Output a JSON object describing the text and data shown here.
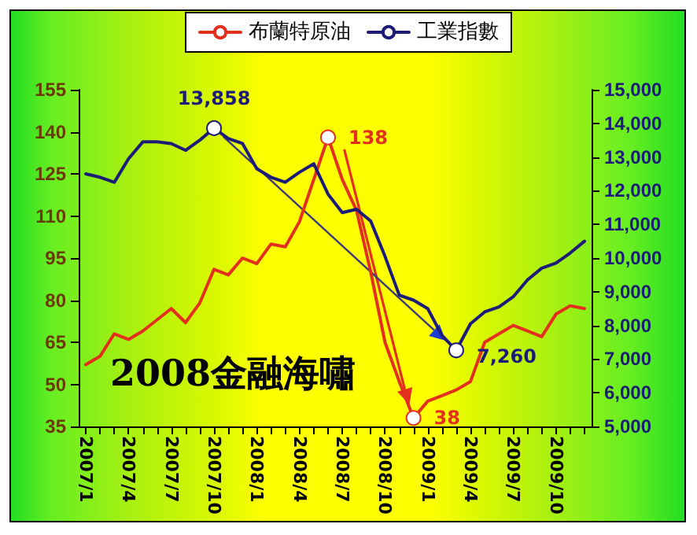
{
  "chart_data": {
    "type": "line",
    "categories": [
      "2007/1",
      null,
      null,
      "2007/4",
      null,
      null,
      "2007/7",
      null,
      null,
      "2007/10",
      null,
      null,
      "2008/1",
      null,
      null,
      "2008/4",
      null,
      null,
      "2008/7",
      null,
      null,
      "2008/10",
      null,
      null,
      "2009/1",
      null,
      null,
      "2009/4",
      null,
      null,
      "2009/7",
      null,
      null,
      "2009/10",
      null,
      null
    ],
    "series": [
      {
        "name": "布蘭特原油",
        "color": "#e3301c",
        "values": [
          57,
          60,
          68,
          66,
          69,
          73,
          77,
          72,
          79,
          91,
          89,
          95,
          93,
          100,
          99,
          108,
          123,
          138,
          123,
          112,
          90,
          65,
          51,
          38,
          44,
          46,
          48,
          51,
          65,
          68,
          71,
          69,
          67,
          75,
          78,
          77
        ],
        "value_labels": [
          null,
          null,
          null,
          null,
          null,
          null,
          null,
          null,
          null,
          null,
          null,
          null,
          null,
          null,
          null,
          null,
          null,
          "138",
          null,
          null,
          null,
          null,
          null,
          "38",
          null,
          null,
          null,
          null,
          null,
          null,
          null,
          null,
          null,
          null,
          null,
          null
        ]
      },
      {
        "name": "工業指數",
        "color": "#1c1c78",
        "axis": "y2",
        "values": [
          12500,
          12400,
          12250,
          12950,
          13450,
          13450,
          13400,
          13200,
          13500,
          13858,
          13550,
          13400,
          12650,
          12400,
          12250,
          12550,
          12800,
          11900,
          11350,
          11450,
          11100,
          10050,
          8900,
          8750,
          8500,
          7700,
          7260,
          8050,
          8400,
          8550,
          8850,
          9350,
          9700,
          9850,
          10150,
          10500
        ],
        "value_labels": [
          null,
          null,
          null,
          null,
          null,
          null,
          null,
          null,
          null,
          "13,858",
          null,
          null,
          null,
          null,
          null,
          null,
          null,
          null,
          null,
          null,
          null,
          null,
          null,
          null,
          null,
          null,
          "7,260",
          null,
          null,
          null,
          null,
          null,
          null,
          null,
          null,
          null
        ]
      }
    ],
    "ylim": [
      35,
      155
    ],
    "yticks": [
      35,
      50,
      65,
      80,
      95,
      110,
      125,
      140,
      155
    ],
    "y2lim": [
      5000,
      15000
    ],
    "y2ticks": [
      {
        "value": 5000,
        "label": "5,000"
      },
      {
        "value": 6000,
        "label": "6,000"
      },
      {
        "value": 7000,
        "label": "7,000"
      },
      {
        "value": 8000,
        "label": "8,000"
      },
      {
        "value": 9000,
        "label": "9,000"
      },
      {
        "value": 10000,
        "label": "10,000"
      },
      {
        "value": 11000,
        "label": "11,000"
      },
      {
        "value": 12000,
        "label": "12,000"
      },
      {
        "value": 13000,
        "label": "13,000"
      },
      {
        "value": 14000,
        "label": "14,000"
      },
      {
        "value": 15000,
        "label": "15,000"
      }
    ],
    "annotations": [
      "2008金融海嘯"
    ],
    "legend": "top",
    "grid": false
  }
}
